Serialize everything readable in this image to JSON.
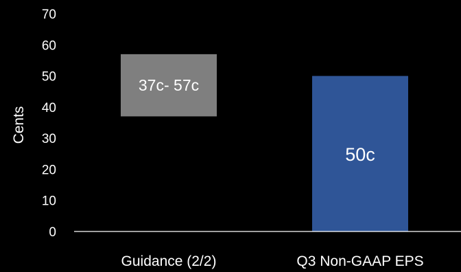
{
  "chart_data": {
    "type": "bar",
    "categories": [
      "Guidance (2/2)",
      "Q3 Non-GAAP EPS"
    ],
    "bars": [
      {
        "category": "Guidance (2/2)",
        "low": 37,
        "high": 57,
        "label": "37c- 57c",
        "color": "#7f7f7f"
      },
      {
        "category": "Q3 Non-GAAP EPS",
        "low": 0,
        "high": 50,
        "label": "50c",
        "color": "#2f5597"
      }
    ],
    "ylabel": "Cents",
    "xlabel": "",
    "ylim": [
      0,
      70
    ],
    "yticks": [
      0,
      10,
      20,
      30,
      40,
      50,
      60,
      70
    ],
    "grid": false,
    "colors": {
      "background": "#000000",
      "text": "#ffffff",
      "axis": "#ffffff"
    }
  }
}
